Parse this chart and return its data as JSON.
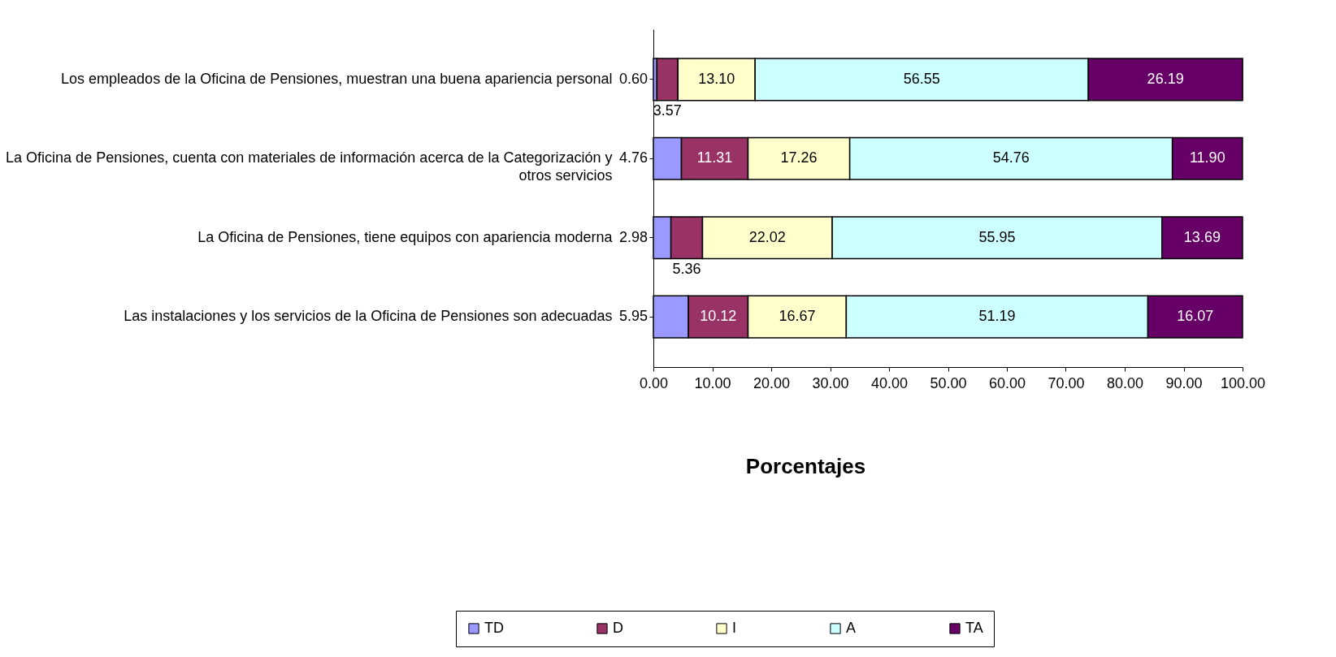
{
  "chart_data": {
    "type": "bar",
    "orientation": "horizontal",
    "stacked": true,
    "xlabel": "Porcentajes",
    "categories": [
      "Los empleados de la Oficina de Pensiones, muestran una buena apariencia personal",
      "La Oficina de Pensiones, cuenta con materiales de información acerca de la Categorización y otros servicios",
      "La Oficina de Pensiones, tiene equipos con apariencia moderna",
      "Las instalaciones y los servicios de la Oficina de Pensiones son adecuadas"
    ],
    "series": [
      {
        "name": "TD",
        "color": "#9999ff",
        "values": [
          0.6,
          4.76,
          2.98,
          5.95
        ],
        "value_labels": [
          "0.60",
          "4.76",
          "2.98",
          "5.95"
        ]
      },
      {
        "name": "D",
        "color": "#993366",
        "values": [
          3.57,
          11.31,
          5.36,
          10.12
        ],
        "value_labels": [
          "3.57",
          "11.31",
          "5.36",
          "10.12"
        ]
      },
      {
        "name": "I",
        "color": "#ffffcc",
        "values": [
          13.1,
          17.26,
          22.02,
          16.67
        ],
        "value_labels": [
          "13.10",
          "17.26",
          "22.02",
          "16.67"
        ]
      },
      {
        "name": "A",
        "color": "#ccffff",
        "values": [
          56.55,
          54.76,
          55.95,
          51.19
        ],
        "value_labels": [
          "56.55",
          "54.76",
          "55.95",
          "51.19"
        ]
      },
      {
        "name": "TA",
        "color": "#660066",
        "values": [
          26.19,
          11.9,
          13.69,
          16.07
        ],
        "value_labels": [
          "26.19",
          "11.90",
          "13.69",
          "16.07"
        ]
      }
    ],
    "xlim": [
      0,
      100
    ],
    "xticks": [
      {
        "value": 0,
        "label": "0.00"
      },
      {
        "value": 10,
        "label": "10.00"
      },
      {
        "value": 20,
        "label": "20.00"
      },
      {
        "value": 30,
        "label": "30.00"
      },
      {
        "value": 40,
        "label": "40.00"
      },
      {
        "value": 50,
        "label": "50.00"
      },
      {
        "value": 60,
        "label": "60.00"
      },
      {
        "value": 70,
        "label": "70.00"
      },
      {
        "value": 80,
        "label": "80.00"
      },
      {
        "value": 90,
        "label": "90.00"
      },
      {
        "value": 100,
        "label": "100.00"
      }
    ],
    "legend": "bottom"
  }
}
